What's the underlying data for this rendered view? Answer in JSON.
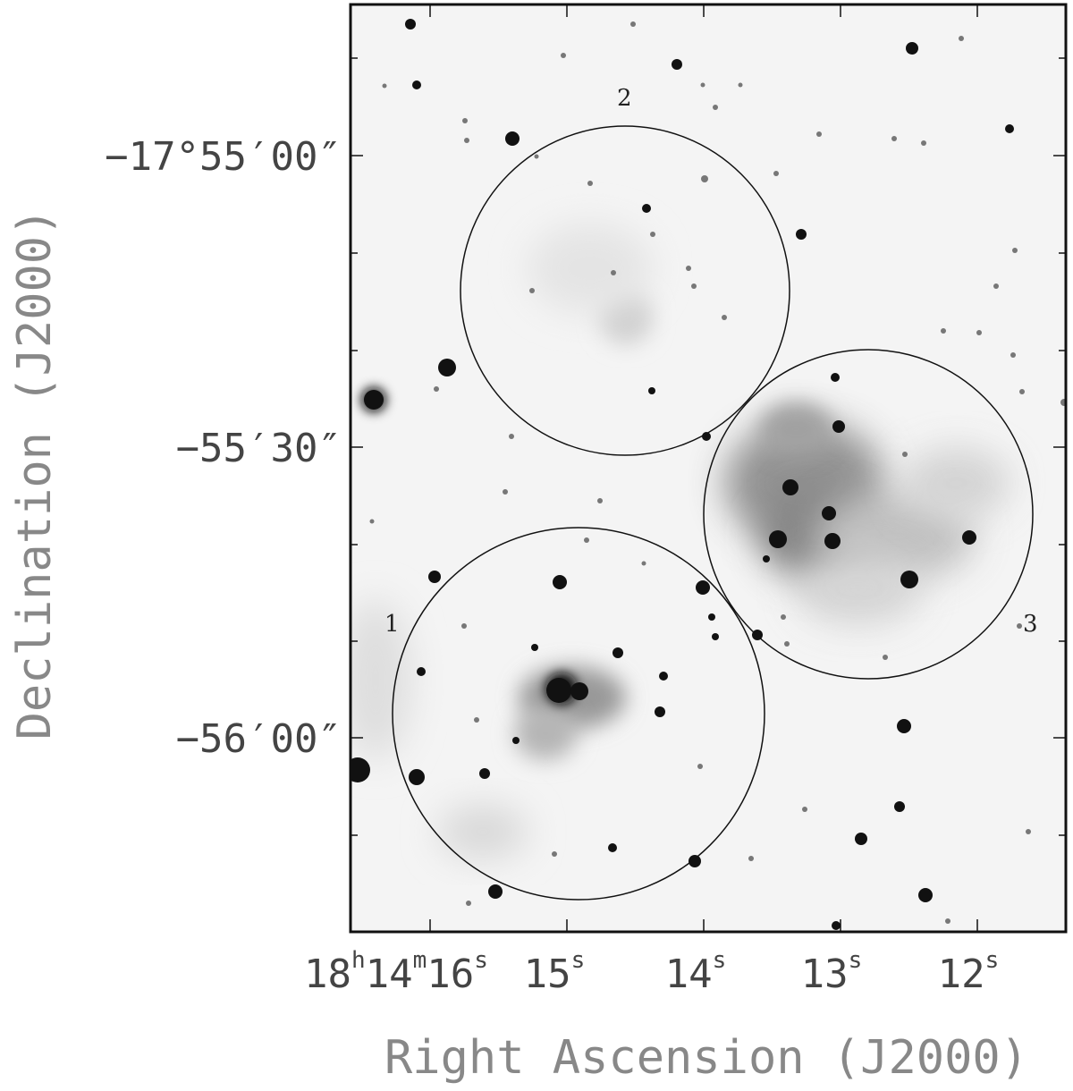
{
  "figure": {
    "ylabel": "Declination (J2000)",
    "xlabel": "Right Ascension (J2000)"
  },
  "ra_ticks": [
    {
      "h": "18",
      "m": "14",
      "s": "16",
      "text": "18h14m16s"
    },
    {
      "s": "15",
      "text": "15s"
    },
    {
      "s": "14",
      "text": "14s"
    },
    {
      "s": "13",
      "text": "13s"
    },
    {
      "s": "12",
      "text": "12s"
    }
  ],
  "dec_ticks": [
    {
      "text": "−17°55′00″"
    },
    {
      "text": "−55′30″"
    },
    {
      "text": "−56′00″"
    }
  ],
  "regions": [
    {
      "label": "1"
    },
    {
      "label": "2"
    },
    {
      "label": "3"
    }
  ]
}
